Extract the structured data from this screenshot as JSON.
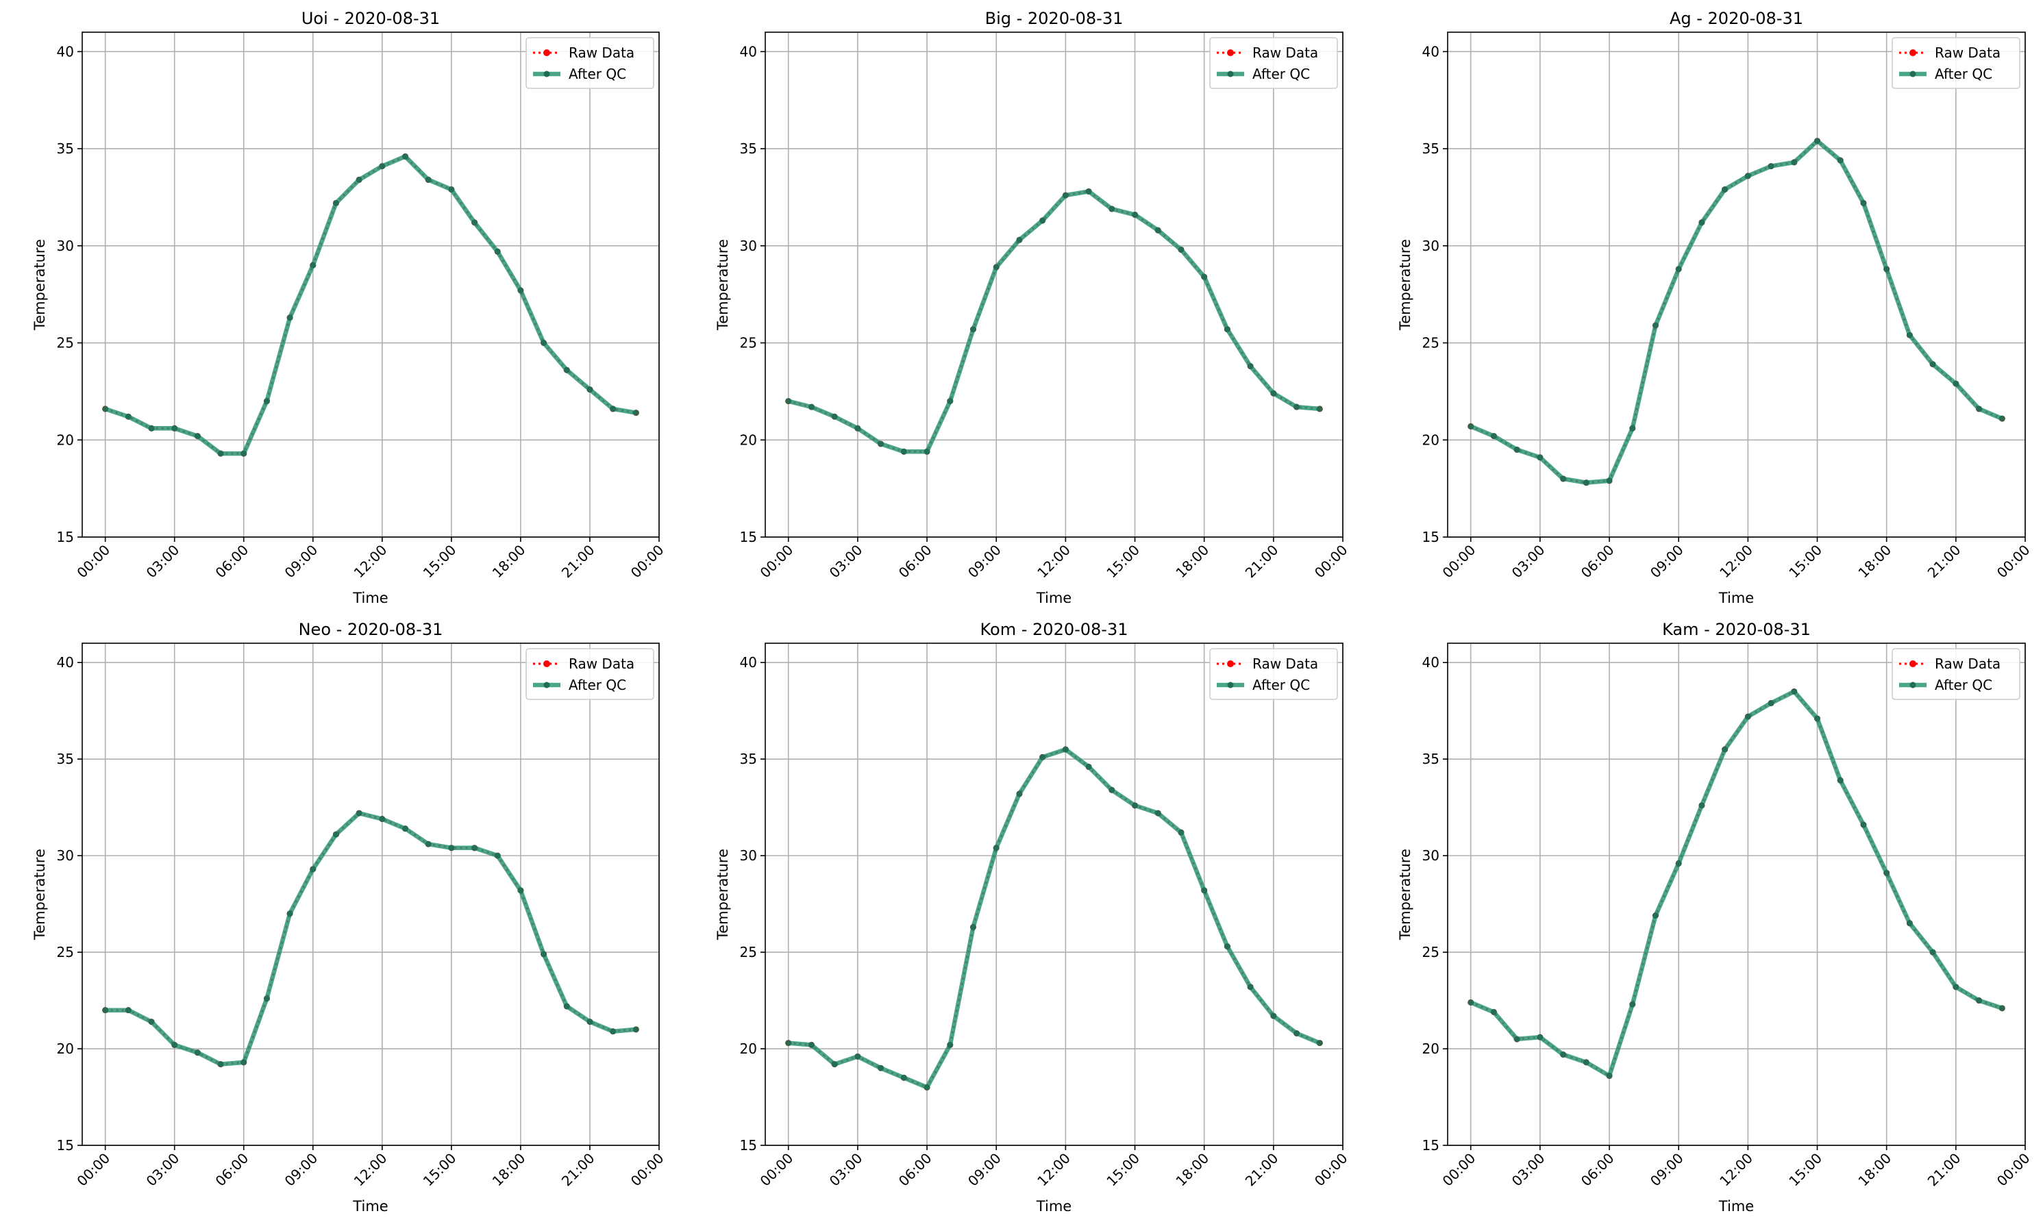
{
  "legend_labels": {
    "raw": "Raw Data",
    "qc": "After QC"
  },
  "colors": {
    "raw": "#ff0000",
    "qc": "#2a9574",
    "grid": "#b0b0b0"
  },
  "chart_data": [
    {
      "type": "line",
      "title": "Uoi - 2020-08-31",
      "xlabel": "Time",
      "ylabel": "Temperature",
      "xlim": [
        "-01:00",
        "24:00"
      ],
      "ylim": [
        15,
        41
      ],
      "grid": true,
      "legend_position": "top-right",
      "x_ticks": [
        "00:00",
        "03:00",
        "06:00",
        "09:00",
        "12:00",
        "15:00",
        "18:00",
        "21:00",
        "00:00"
      ],
      "y_ticks": [
        15,
        20,
        25,
        30,
        35,
        40
      ],
      "x": [
        "00:00",
        "01:00",
        "02:00",
        "03:00",
        "04:00",
        "05:00",
        "06:00",
        "07:00",
        "08:00",
        "09:00",
        "10:00",
        "11:00",
        "12:00",
        "13:00",
        "14:00",
        "15:00",
        "16:00",
        "17:00",
        "18:00",
        "19:00",
        "20:00",
        "21:00",
        "22:00",
        "23:00"
      ],
      "series": [
        {
          "name": "Raw Data",
          "values": [
            21.6,
            21.2,
            20.6,
            20.6,
            20.2,
            19.3,
            19.3,
            22.0,
            26.3,
            29.0,
            32.2,
            33.4,
            34.1,
            34.6,
            33.4,
            32.9,
            31.2,
            29.7,
            27.7,
            25.0,
            23.6,
            22.6,
            21.6,
            21.4
          ]
        },
        {
          "name": "After QC",
          "values": [
            21.6,
            21.2,
            20.6,
            20.6,
            20.2,
            19.3,
            19.3,
            22.0,
            26.3,
            29.0,
            32.2,
            33.4,
            34.1,
            34.6,
            33.4,
            32.9,
            31.2,
            29.7,
            27.7,
            25.0,
            23.6,
            22.6,
            21.6,
            21.4
          ]
        }
      ]
    },
    {
      "type": "line",
      "title": "Big - 2020-08-31",
      "xlabel": "Time",
      "ylabel": "Temperature",
      "xlim": [
        "-01:00",
        "24:00"
      ],
      "ylim": [
        15,
        41
      ],
      "grid": true,
      "legend_position": "top-right",
      "x_ticks": [
        "00:00",
        "03:00",
        "06:00",
        "09:00",
        "12:00",
        "15:00",
        "18:00",
        "21:00",
        "00:00"
      ],
      "y_ticks": [
        15,
        20,
        25,
        30,
        35,
        40
      ],
      "x": [
        "00:00",
        "01:00",
        "02:00",
        "03:00",
        "04:00",
        "05:00",
        "06:00",
        "07:00",
        "08:00",
        "09:00",
        "10:00",
        "11:00",
        "12:00",
        "13:00",
        "14:00",
        "15:00",
        "16:00",
        "17:00",
        "18:00",
        "19:00",
        "20:00",
        "21:00",
        "22:00",
        "23:00"
      ],
      "series": [
        {
          "name": "Raw Data",
          "values": [
            22.0,
            21.7,
            21.2,
            20.6,
            19.8,
            19.4,
            19.4,
            22.0,
            25.7,
            28.9,
            30.3,
            31.3,
            32.6,
            32.8,
            31.9,
            31.6,
            30.8,
            29.8,
            28.4,
            25.7,
            23.8,
            22.4,
            21.7,
            21.6
          ]
        },
        {
          "name": "After QC",
          "values": [
            22.0,
            21.7,
            21.2,
            20.6,
            19.8,
            19.4,
            19.4,
            22.0,
            25.7,
            28.9,
            30.3,
            31.3,
            32.6,
            32.8,
            31.9,
            31.6,
            30.8,
            29.8,
            28.4,
            25.7,
            23.8,
            22.4,
            21.7,
            21.6
          ]
        }
      ]
    },
    {
      "type": "line",
      "title": "Ag - 2020-08-31",
      "xlabel": "Time",
      "ylabel": "Temperature",
      "xlim": [
        "-01:00",
        "24:00"
      ],
      "ylim": [
        15,
        41
      ],
      "grid": true,
      "legend_position": "top-right",
      "x_ticks": [
        "00:00",
        "03:00",
        "06:00",
        "09:00",
        "12:00",
        "15:00",
        "18:00",
        "21:00",
        "00:00"
      ],
      "y_ticks": [
        15,
        20,
        25,
        30,
        35,
        40
      ],
      "x": [
        "00:00",
        "01:00",
        "02:00",
        "03:00",
        "04:00",
        "05:00",
        "06:00",
        "07:00",
        "08:00",
        "09:00",
        "10:00",
        "11:00",
        "12:00",
        "13:00",
        "14:00",
        "15:00",
        "16:00",
        "17:00",
        "18:00",
        "19:00",
        "20:00",
        "21:00",
        "22:00",
        "23:00"
      ],
      "series": [
        {
          "name": "Raw Data",
          "values": [
            20.7,
            20.2,
            19.5,
            19.1,
            18.0,
            17.8,
            17.9,
            20.6,
            25.9,
            28.8,
            31.2,
            32.9,
            33.6,
            34.1,
            34.3,
            35.4,
            34.4,
            32.2,
            28.8,
            25.4,
            23.9,
            22.9,
            21.6,
            21.1
          ]
        },
        {
          "name": "After QC",
          "values": [
            20.7,
            20.2,
            19.5,
            19.1,
            18.0,
            17.8,
            17.9,
            20.6,
            25.9,
            28.8,
            31.2,
            32.9,
            33.6,
            34.1,
            34.3,
            35.4,
            34.4,
            32.2,
            28.8,
            25.4,
            23.9,
            22.9,
            21.6,
            21.1
          ]
        }
      ]
    },
    {
      "type": "line",
      "title": "Neo - 2020-08-31",
      "xlabel": "Time",
      "ylabel": "Temperature",
      "xlim": [
        "-01:00",
        "24:00"
      ],
      "ylim": [
        15,
        41
      ],
      "grid": true,
      "legend_position": "top-right",
      "x_ticks": [
        "00:00",
        "03:00",
        "06:00",
        "09:00",
        "12:00",
        "15:00",
        "18:00",
        "21:00",
        "00:00"
      ],
      "y_ticks": [
        15,
        20,
        25,
        30,
        35,
        40
      ],
      "x": [
        "00:00",
        "01:00",
        "02:00",
        "03:00",
        "04:00",
        "05:00",
        "06:00",
        "07:00",
        "08:00",
        "09:00",
        "10:00",
        "11:00",
        "12:00",
        "13:00",
        "14:00",
        "15:00",
        "16:00",
        "17:00",
        "18:00",
        "19:00",
        "20:00",
        "21:00",
        "22:00",
        "23:00"
      ],
      "series": [
        {
          "name": "Raw Data",
          "values": [
            22.0,
            22.0,
            21.4,
            20.2,
            19.8,
            19.2,
            19.3,
            22.6,
            27.0,
            29.3,
            31.1,
            32.2,
            31.9,
            31.4,
            30.6,
            30.4,
            30.4,
            30.0,
            28.2,
            24.9,
            22.2,
            21.4,
            20.9,
            21.0
          ]
        },
        {
          "name": "After QC",
          "values": [
            22.0,
            22.0,
            21.4,
            20.2,
            19.8,
            19.2,
            19.3,
            22.6,
            27.0,
            29.3,
            31.1,
            32.2,
            31.9,
            31.4,
            30.6,
            30.4,
            30.4,
            30.0,
            28.2,
            24.9,
            22.2,
            21.4,
            20.9,
            21.0
          ]
        }
      ]
    },
    {
      "type": "line",
      "title": "Kom - 2020-08-31",
      "xlabel": "Time",
      "ylabel": "Temperature",
      "xlim": [
        "-01:00",
        "24:00"
      ],
      "ylim": [
        15,
        41
      ],
      "grid": true,
      "legend_position": "top-right",
      "x_ticks": [
        "00:00",
        "03:00",
        "06:00",
        "09:00",
        "12:00",
        "15:00",
        "18:00",
        "21:00",
        "00:00"
      ],
      "y_ticks": [
        15,
        20,
        25,
        30,
        35,
        40
      ],
      "x": [
        "00:00",
        "01:00",
        "02:00",
        "03:00",
        "04:00",
        "05:00",
        "06:00",
        "07:00",
        "08:00",
        "09:00",
        "10:00",
        "11:00",
        "12:00",
        "13:00",
        "14:00",
        "15:00",
        "16:00",
        "17:00",
        "18:00",
        "19:00",
        "20:00",
        "21:00",
        "22:00",
        "23:00"
      ],
      "series": [
        {
          "name": "Raw Data",
          "values": [
            20.3,
            20.2,
            19.2,
            19.6,
            19.0,
            18.5,
            18.0,
            20.2,
            26.3,
            30.4,
            33.2,
            35.1,
            35.5,
            34.6,
            33.4,
            32.6,
            32.2,
            31.2,
            28.2,
            25.3,
            23.2,
            21.7,
            20.8,
            20.3
          ]
        },
        {
          "name": "After QC",
          "values": [
            20.3,
            20.2,
            19.2,
            19.6,
            19.0,
            18.5,
            18.0,
            20.2,
            26.3,
            30.4,
            33.2,
            35.1,
            35.5,
            34.6,
            33.4,
            32.6,
            32.2,
            31.2,
            28.2,
            25.3,
            23.2,
            21.7,
            20.8,
            20.3
          ]
        }
      ]
    },
    {
      "type": "line",
      "title": "Kam - 2020-08-31",
      "xlabel": "Time",
      "ylabel": "Temperature",
      "xlim": [
        "-01:00",
        "24:00"
      ],
      "ylim": [
        15,
        41
      ],
      "grid": true,
      "legend_position": "top-right",
      "x_ticks": [
        "00:00",
        "03:00",
        "06:00",
        "09:00",
        "12:00",
        "15:00",
        "18:00",
        "21:00",
        "00:00"
      ],
      "y_ticks": [
        15,
        20,
        25,
        30,
        35,
        40
      ],
      "x": [
        "00:00",
        "01:00",
        "02:00",
        "03:00",
        "04:00",
        "05:00",
        "06:00",
        "07:00",
        "08:00",
        "09:00",
        "10:00",
        "11:00",
        "12:00",
        "13:00",
        "14:00",
        "15:00",
        "16:00",
        "17:00",
        "18:00",
        "19:00",
        "20:00",
        "21:00",
        "22:00",
        "23:00"
      ],
      "series": [
        {
          "name": "Raw Data",
          "values": [
            22.4,
            21.9,
            20.5,
            20.6,
            19.7,
            19.3,
            18.6,
            22.3,
            26.9,
            29.6,
            32.6,
            35.5,
            37.2,
            37.9,
            38.5,
            37.1,
            33.9,
            31.6,
            29.1,
            26.5,
            25.0,
            23.2,
            22.5,
            22.1
          ]
        },
        {
          "name": "After QC",
          "values": [
            22.4,
            21.9,
            20.5,
            20.6,
            19.7,
            19.3,
            18.6,
            22.3,
            26.9,
            29.6,
            32.6,
            35.5,
            37.2,
            37.9,
            38.5,
            37.1,
            33.9,
            31.6,
            29.1,
            26.5,
            25.0,
            23.2,
            22.5,
            22.1
          ]
        }
      ]
    }
  ]
}
